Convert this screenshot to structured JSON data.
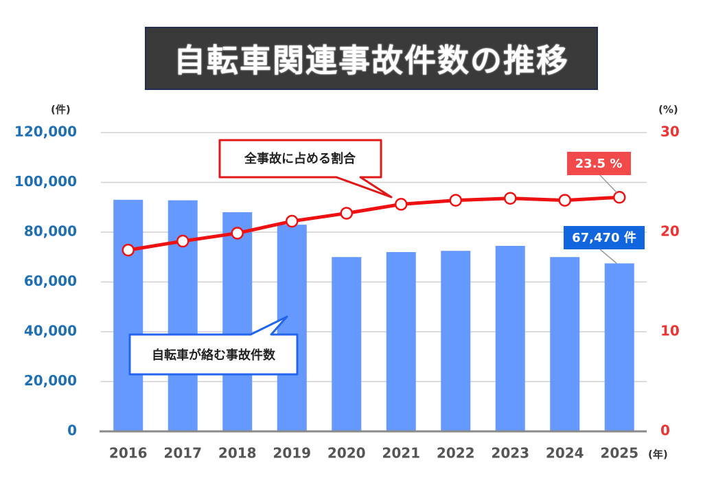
{
  "title": "自転車関連事故件数の推移",
  "chart_data": {
    "type": "bar",
    "categories": [
      "2016",
      "2017",
      "2018",
      "2019",
      "2020",
      "2021",
      "2022",
      "2023",
      "2024",
      "2025"
    ],
    "series": [
      {
        "name": "自転車が絡む事故件数",
        "axis": "left",
        "type": "bar",
        "color": "#6699ff",
        "values": [
          93000,
          92800,
          88000,
          83000,
          70000,
          72000,
          72500,
          74500,
          70000,
          67470
        ]
      },
      {
        "name": "全事故に占める割合",
        "axis": "right",
        "type": "line",
        "color": "#ee1111",
        "values": [
          18.2,
          19.1,
          19.9,
          21.1,
          21.9,
          22.8,
          23.2,
          23.4,
          23.2,
          23.5
        ]
      }
    ],
    "y_left": {
      "unit": "(件)",
      "ylim": [
        0,
        120000
      ],
      "ticks": [
        {
          "value": 0,
          "label": "0"
        },
        {
          "value": 20000,
          "label": "20,000"
        },
        {
          "value": 40000,
          "label": "40,000"
        },
        {
          "value": 60000,
          "label": "60,000"
        },
        {
          "value": 80000,
          "label": "80,000"
        },
        {
          "value": 100000,
          "label": "100,000"
        },
        {
          "value": 120000,
          "label": "120,000"
        }
      ]
    },
    "y_right": {
      "unit": "(%)",
      "ylim": [
        0,
        30
      ],
      "ticks": [
        {
          "value": 0,
          "label": "0"
        },
        {
          "value": 10,
          "label": "10"
        },
        {
          "value": 20,
          "label": "20"
        },
        {
          "value": 30,
          "label": "30"
        }
      ]
    },
    "x_unit": "(年)",
    "grid": true,
    "annotations": {
      "line_callout": "全事故に占める割合",
      "bar_callout": "自転車が絡む事故件数",
      "line_last_label": "23.5 %",
      "bar_last_label": "67,470 件"
    }
  }
}
